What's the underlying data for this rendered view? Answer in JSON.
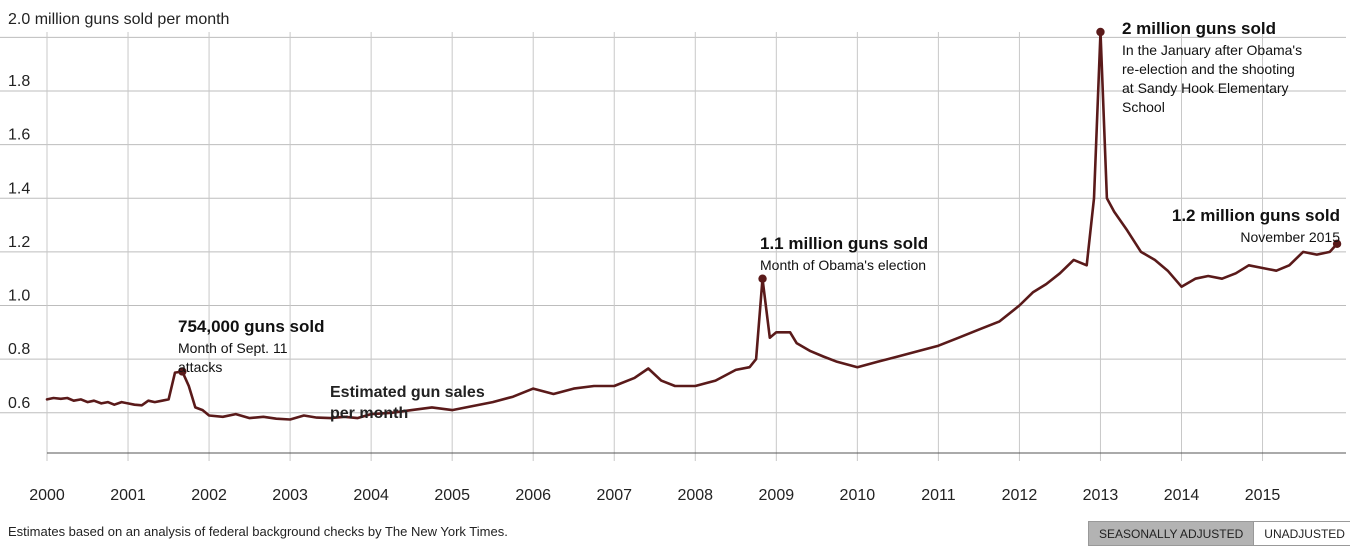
{
  "chart_data": {
    "type": "line",
    "title": "",
    "y_axis_title": "2.0 million guns sold per month",
    "ylim": [
      0.45,
      2.02
    ],
    "xlim": [
      2000,
      2016.03
    ],
    "y_ticks": [
      0.6,
      0.8,
      1.0,
      1.2,
      1.4,
      1.6,
      1.8,
      2.0
    ],
    "y_tick_labels": [
      "0.6",
      "0.8",
      "1.0",
      "1.2",
      "1.4",
      "1.6",
      "1.8",
      ""
    ],
    "x_ticks": [
      2000,
      2001,
      2002,
      2003,
      2004,
      2005,
      2006,
      2007,
      2008,
      2009,
      2010,
      2011,
      2012,
      2013,
      2014,
      2015
    ],
    "x_tick_labels": [
      "2000",
      "2001",
      "2002",
      "2003",
      "2004",
      "2005",
      "2006",
      "2007",
      "2008",
      "2009",
      "2010",
      "2011",
      "2012",
      "2013",
      "2014",
      "2015"
    ],
    "grid": true,
    "color": "#5a1a1a",
    "series": [
      {
        "label": "Estimated gun sales per month",
        "x": [
          2000.0,
          2000.08,
          2000.17,
          2000.25,
          2000.33,
          2000.42,
          2000.5,
          2000.58,
          2000.67,
          2000.75,
          2000.83,
          2000.92,
          2001.0,
          2001.08,
          2001.17,
          2001.25,
          2001.33,
          2001.42,
          2001.5,
          2001.58,
          2001.67,
          2001.75,
          2001.83,
          2001.92,
          2002.0,
          2002.17,
          2002.33,
          2002.5,
          2002.67,
          2002.83,
          2003.0,
          2003.17,
          2003.33,
          2003.5,
          2003.67,
          2003.83,
          2004.0,
          2004.25,
          2004.5,
          2004.75,
          2005.0,
          2005.25,
          2005.5,
          2005.75,
          2006.0,
          2006.25,
          2006.5,
          2006.75,
          2007.0,
          2007.25,
          2007.42,
          2007.58,
          2007.75,
          2008.0,
          2008.25,
          2008.5,
          2008.67,
          2008.75,
          2008.83,
          2008.92,
          2009.0,
          2009.17,
          2009.25,
          2009.42,
          2009.58,
          2009.75,
          2010.0,
          2010.25,
          2010.5,
          2010.75,
          2011.0,
          2011.25,
          2011.5,
          2011.75,
          2012.0,
          2012.17,
          2012.33,
          2012.5,
          2012.67,
          2012.83,
          2012.92,
          2013.0,
          2013.08,
          2013.17,
          2013.33,
          2013.5,
          2013.67,
          2013.83,
          2014.0,
          2014.17,
          2014.33,
          2014.5,
          2014.67,
          2014.83,
          2015.0,
          2015.17,
          2015.33,
          2015.5,
          2015.67,
          2015.83,
          2015.92
        ],
        "y": [
          0.65,
          0.655,
          0.652,
          0.655,
          0.645,
          0.65,
          0.64,
          0.645,
          0.635,
          0.64,
          0.63,
          0.64,
          0.635,
          0.63,
          0.628,
          0.645,
          0.64,
          0.645,
          0.65,
          0.75,
          0.754,
          0.7,
          0.62,
          0.61,
          0.59,
          0.585,
          0.595,
          0.58,
          0.585,
          0.578,
          0.575,
          0.59,
          0.582,
          0.58,
          0.585,
          0.58,
          0.595,
          0.6,
          0.61,
          0.62,
          0.61,
          0.625,
          0.64,
          0.66,
          0.69,
          0.67,
          0.69,
          0.7,
          0.7,
          0.73,
          0.765,
          0.72,
          0.7,
          0.7,
          0.72,
          0.76,
          0.77,
          0.8,
          1.1,
          0.88,
          0.9,
          0.9,
          0.86,
          0.83,
          0.81,
          0.79,
          0.77,
          0.79,
          0.81,
          0.83,
          0.85,
          0.88,
          0.91,
          0.94,
          1.0,
          1.05,
          1.08,
          1.12,
          1.17,
          1.15,
          1.4,
          2.02,
          1.4,
          1.35,
          1.28,
          1.2,
          1.17,
          1.13,
          1.07,
          1.1,
          1.11,
          1.1,
          1.12,
          1.15,
          1.14,
          1.13,
          1.15,
          1.2,
          1.19,
          1.2,
          1.23
        ]
      }
    ],
    "annotations": [
      {
        "title": "754,000 guns sold",
        "lines": [
          "Month of Sept. 11",
          "attacks"
        ],
        "x": 2001.67,
        "y": 0.754
      },
      {
        "title": "1.1 million guns sold",
        "lines": [
          "Month of Obama's election"
        ],
        "x": 2008.83,
        "y": 1.1
      },
      {
        "title": "2 million guns sold",
        "lines": [
          "In the January after Obama's",
          "re-election and the shooting",
          "at Sandy Hook Elementary",
          "School"
        ],
        "x": 2013.0,
        "y": 2.02
      },
      {
        "title": "1.2 million guns sold",
        "lines": [
          "November 2015"
        ],
        "x": 2015.92,
        "y": 1.23
      }
    ]
  },
  "footnote": "Estimates based on an analysis of federal background checks by The New York Times.",
  "toggle": {
    "active_label": "SEASONALLY ADJUSTED",
    "inactive_label": "UNADJUSTED"
  }
}
